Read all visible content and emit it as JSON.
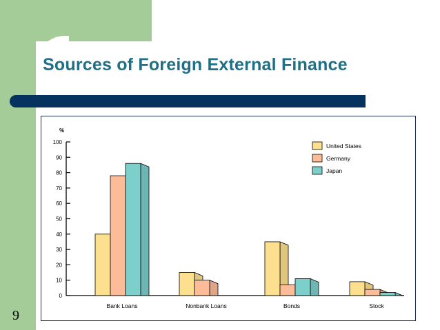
{
  "slide": {
    "title": "Sources of Foreign External Finance",
    "number": "9"
  },
  "colors": {
    "green_accent": "#a3cc98",
    "title_text": "#1f6f86",
    "title_bar": "#05325e",
    "frame_border": "#1a2c55"
  },
  "chart_data": {
    "type": "bar",
    "title": "",
    "ylabel": "%",
    "xlabel": "",
    "ylim": [
      0,
      100
    ],
    "yticks": [
      0,
      10,
      20,
      30,
      40,
      50,
      60,
      70,
      80,
      90,
      100
    ],
    "categories": [
      "Bank Loans",
      "Nonbank Loans",
      "Bonds",
      "Stock"
    ],
    "series": [
      {
        "name": "United States",
        "color": "#fde08f",
        "values": [
          40,
          15,
          35,
          9
        ]
      },
      {
        "name": "Germany",
        "color": "#fdbc98",
        "values": [
          78,
          10,
          7,
          4
        ]
      },
      {
        "name": "Japan",
        "color": "#7ccfcb",
        "values": [
          86,
          0,
          11,
          2
        ]
      }
    ],
    "grid": false,
    "legend": "top-right",
    "style": "3d-bars"
  }
}
